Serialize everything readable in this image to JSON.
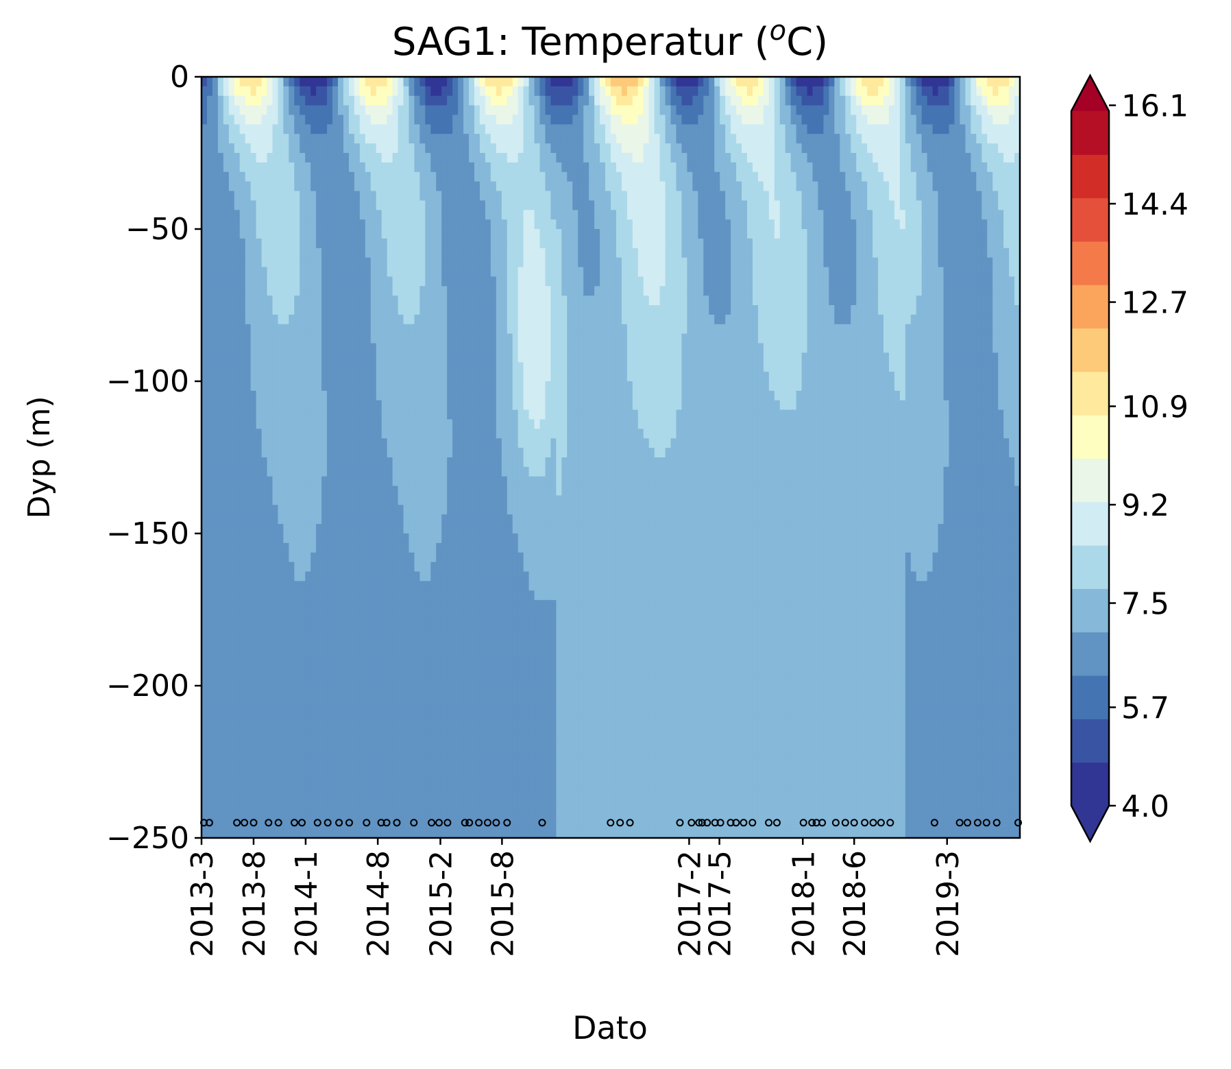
{
  "chart_data": {
    "type": "heatmap",
    "title": "SAG1: Temperatur (",
    "title_superscript": "o",
    "title_suffix": "C)",
    "xlabel": "Dato",
    "ylabel": "Dyp (m)",
    "ylim": [
      -250,
      0
    ],
    "y_ticks": [
      0,
      -50,
      -100,
      -150,
      -200,
      -250
    ],
    "y_tick_labels": [
      "0",
      "−50",
      "−100",
      "−150",
      "−200",
      "−250"
    ],
    "x_range": [
      "2013-03",
      "2019-10"
    ],
    "x_ticks": [
      {
        "date": "2013-03",
        "label": "2013-3"
      },
      {
        "date": "2013-08",
        "label": "2013-8"
      },
      {
        "date": "2014-01",
        "label": "2014-1"
      },
      {
        "date": "2014-08",
        "label": "2014-8"
      },
      {
        "date": "2015-02",
        "label": "2015-2"
      },
      {
        "date": "2015-08",
        "label": "2015-8"
      },
      {
        "date": "2017-02",
        "label": "2017-2"
      },
      {
        "date": "2017-05",
        "label": "2017-5"
      },
      {
        "date": "2018-01",
        "label": "2018-1"
      },
      {
        "date": "2018-06",
        "label": "2018-6"
      },
      {
        "date": "2019-03",
        "label": "2019-3"
      }
    ],
    "colorbar": {
      "ticks": [
        4.0,
        5.7,
        7.5,
        9.2,
        10.9,
        12.7,
        14.4,
        16.1
      ],
      "tick_labels": [
        "4.0",
        "5.7",
        "7.5",
        "9.2",
        "10.9",
        "12.7",
        "14.4",
        "16.1"
      ],
      "levels": [
        4.0,
        4.86,
        5.71,
        6.57,
        7.43,
        8.29,
        9.14,
        10.0,
        10.86,
        11.71,
        12.57,
        13.43,
        14.29,
        15.14,
        16.0
      ],
      "colors": [
        "#313695",
        "#3a54a4",
        "#4574b3",
        "#6193c3",
        "#85b8d9",
        "#abd9e9",
        "#d2ecf4",
        "#e9f6e8",
        "#fefec0",
        "#fee99d",
        "#fdca79",
        "#fba55c",
        "#f57a4a",
        "#e4503a",
        "#d22e27",
        "#b50f26"
      ],
      "extend": "both"
    },
    "sample_markers_depth": -245,
    "sample_dates": [
      "2013-03-08",
      "2013-03-24",
      "2013-06-13",
      "2013-07-05",
      "2013-08-01",
      "2013-09-14",
      "2013-10-13",
      "2013-11-29",
      "2013-12-21",
      "2014-02-05",
      "2014-03-07",
      "2014-04-09",
      "2014-05-09",
      "2014-06-29",
      "2014-08-11",
      "2014-08-27",
      "2014-09-26",
      "2014-11-15",
      "2015-01-06",
      "2015-01-28",
      "2015-02-22",
      "2015-04-14",
      "2015-04-27",
      "2015-05-25",
      "2015-06-20",
      "2015-07-15",
      "2015-08-16",
      "2015-11-27",
      "2016-06-15",
      "2016-07-13",
      "2016-08-11",
      "2017-01-05",
      "2017-02-08",
      "2017-03-02",
      "2017-03-11",
      "2017-03-26",
      "2017-04-18",
      "2017-05-04",
      "2017-06-03",
      "2017-06-19",
      "2017-07-11",
      "2017-08-06",
      "2017-09-23",
      "2017-10-17",
      "2018-01-03",
      "2018-01-28",
      "2018-02-10",
      "2018-02-27",
      "2018-04-08",
      "2018-05-06",
      "2018-06-01",
      "2018-07-02",
      "2018-07-27",
      "2018-08-19",
      "2018-09-15",
      "2019-01-23",
      "2019-04-07",
      "2019-04-30",
      "2019-05-30",
      "2019-06-25",
      "2019-07-25",
      "2019-09-26"
    ],
    "grid": false,
    "colorbar_position": "right"
  }
}
